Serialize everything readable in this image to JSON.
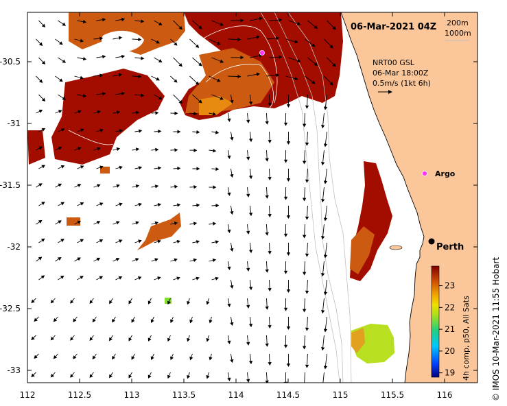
{
  "map": {
    "date_label": "06-Mar-2021 04Z",
    "depth_legend": [
      "200m",
      "1000m"
    ],
    "current_info": [
      "NRT00 GSL",
      "06-Mar 18:00Z",
      "0.5m/s (1kt 6h)"
    ],
    "x_ticks": [
      "112",
      "112.5",
      "113",
      "113.5",
      "114",
      "114.5",
      "115",
      "115.5",
      "116"
    ],
    "y_ticks": [
      "-30.5",
      "-31",
      "-31.5",
      "-32",
      "-32.5",
      "-33"
    ],
    "places": [
      {
        "name": "Argo",
        "lon": 115.81,
        "lat": -31.45,
        "marker": "magenta-dot"
      },
      {
        "name": "Perth",
        "lon": 115.86,
        "lat": -31.95,
        "marker": "black-dot"
      }
    ],
    "colorbar": {
      "ticks": [
        "23",
        "22",
        "21",
        "20",
        "19"
      ],
      "label": "4h comp, p50, All Sats",
      "range": [
        18.8,
        23.9
      ]
    },
    "credit": "© IMOS 10-Mar-2021 11:55 Hobart",
    "colors": {
      "land": "#fbc79a",
      "sst_high": "#a30d00",
      "sst_mid": "#cc5a10",
      "arrow": "#000000"
    }
  }
}
